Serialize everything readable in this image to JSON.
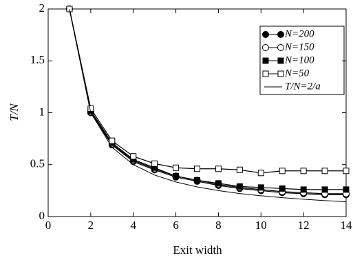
{
  "chart_data": {
    "type": "line",
    "xlabel": "Exit width",
    "ylabel": "T/N",
    "x": [
      1,
      2,
      3,
      4,
      5,
      6,
      7,
      8,
      9,
      10,
      11,
      12,
      13,
      14
    ],
    "xlim": [
      0,
      14
    ],
    "xticks": [
      0,
      2,
      4,
      6,
      8,
      10,
      12,
      14
    ],
    "ylim": [
      0,
      2
    ],
    "yticks": [
      0,
      0.5,
      1,
      1.5,
      2
    ],
    "legend": "upper right",
    "series": [
      {
        "name": "N=200",
        "color": "#000000",
        "marker": "filled-circle",
        "values": [
          2,
          1.0,
          0.69,
          0.53,
          0.45,
          0.38,
          0.34,
          0.3,
          0.27,
          0.25,
          0.23,
          0.22,
          0.21,
          0.21
        ]
      },
      {
        "name": "N=150",
        "color": "#000000",
        "marker": "open-circle",
        "values": [
          2,
          1.01,
          0.7,
          0.54,
          0.46,
          0.39,
          0.35,
          0.31,
          0.28,
          0.26,
          0.24,
          0.23,
          0.22,
          0.22
        ]
      },
      {
        "name": "N=100",
        "color": "#000000",
        "marker": "filled-square",
        "values": [
          2,
          1.02,
          0.71,
          0.55,
          0.47,
          0.39,
          0.35,
          0.32,
          0.29,
          0.28,
          0.27,
          0.26,
          0.26,
          0.26
        ]
      },
      {
        "name": "N=50",
        "color": "#000000",
        "marker": "open-square",
        "values": [
          2,
          1.04,
          0.73,
          0.58,
          0.51,
          0.47,
          0.46,
          0.46,
          0.45,
          0.42,
          0.44,
          0.44,
          0.44,
          0.44
        ]
      },
      {
        "name": "T/N=2/a",
        "color": "#000000",
        "marker": "none",
        "values": [
          2,
          1,
          0.667,
          0.5,
          0.4,
          0.333,
          0.286,
          0.25,
          0.222,
          0.2,
          0.182,
          0.167,
          0.154,
          0.143
        ]
      }
    ]
  }
}
